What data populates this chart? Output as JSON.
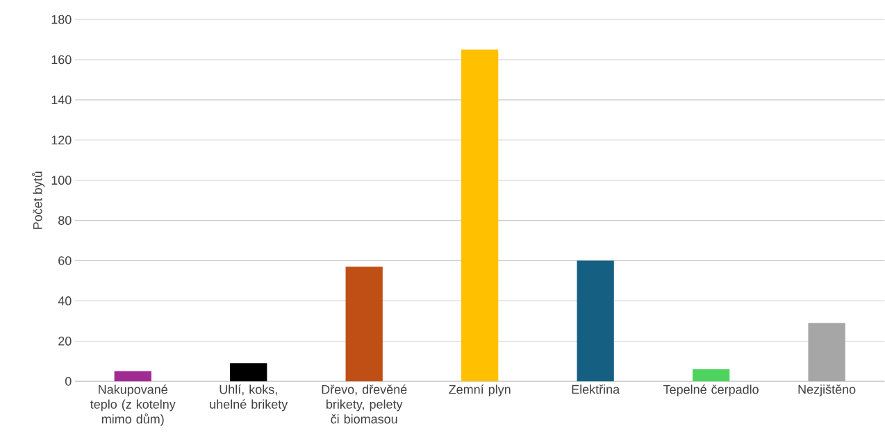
{
  "chart_data": {
    "type": "bar",
    "ylabel": "Počet bytů",
    "categories": [
      "Nakupované teplo (z kotelny mimo dům)",
      "Uhlí, koks, uhelné brikety",
      "Dřevo, dřevěné brikety, pelety či biomasou",
      "Zemní plyn",
      "Elektřina",
      "Tepelné čerpadlo",
      "Nezjištěno"
    ],
    "values": [
      5,
      9,
      57,
      165,
      60,
      6,
      29
    ],
    "colors": [
      "#a02b93",
      "#000000",
      "#c04f15",
      "#ffc000",
      "#156082",
      "#4ed45e",
      "#a6a6a6"
    ],
    "ylim": [
      0,
      180
    ],
    "yticks": [
      0,
      20,
      40,
      60,
      80,
      100,
      120,
      140,
      160,
      180
    ],
    "grid": "y"
  }
}
